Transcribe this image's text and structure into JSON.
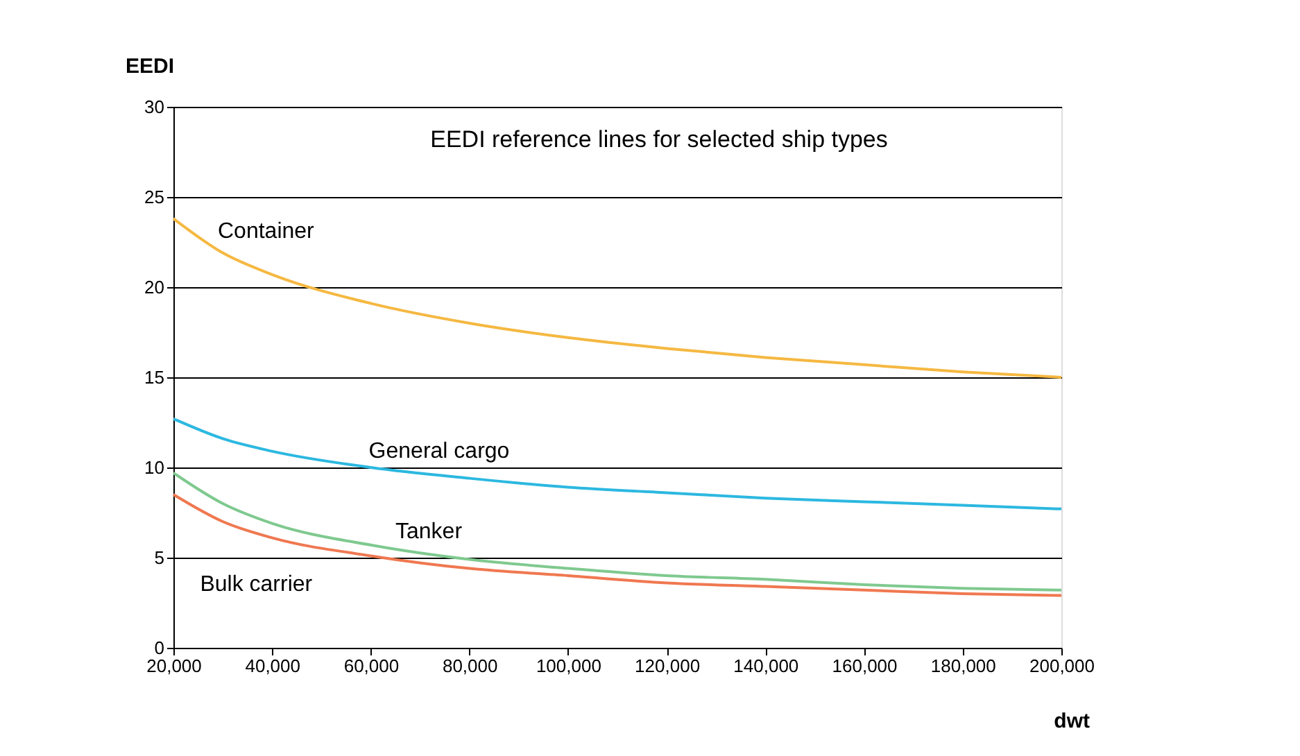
{
  "chart_data": {
    "type": "line",
    "title": "EEDI reference lines for selected ship types",
    "xlabel": "dwt",
    "ylabel": "EEDI",
    "x": [
      20000,
      30000,
      40000,
      60000,
      80000,
      100000,
      120000,
      140000,
      160000,
      180000,
      200000
    ],
    "series": [
      {
        "name": "Container",
        "color": "#f5b841",
        "values": [
          23.8,
          21.9,
          20.7,
          19.1,
          18.0,
          17.2,
          16.6,
          16.1,
          15.7,
          15.3,
          15.0
        ]
      },
      {
        "name": "General cargo",
        "color": "#2cb8e0",
        "values": [
          12.7,
          11.6,
          10.9,
          10.0,
          9.4,
          8.9,
          8.6,
          8.3,
          8.1,
          7.9,
          7.7
        ]
      },
      {
        "name": "Tanker",
        "color": "#7fc98f",
        "values": [
          9.7,
          8.0,
          6.9,
          5.7,
          4.9,
          4.4,
          4.0,
          3.8,
          3.5,
          3.3,
          3.2
        ]
      },
      {
        "name": "Bulk carrier",
        "color": "#f07850",
        "values": [
          8.5,
          7.0,
          6.1,
          5.1,
          4.4,
          4.0,
          3.6,
          3.4,
          3.2,
          3.0,
          2.9
        ]
      }
    ],
    "xlim": [
      20000,
      200000
    ],
    "xticks": [
      {
        "value": 20000,
        "label": "20,000"
      },
      {
        "value": 40000,
        "label": "40,000"
      },
      {
        "value": 60000,
        "label": "60,000"
      },
      {
        "value": 80000,
        "label": "80,000"
      },
      {
        "value": 100000,
        "label": "100,000"
      },
      {
        "value": 120000,
        "label": "120,000"
      },
      {
        "value": 140000,
        "label": "140,000"
      },
      {
        "value": 160000,
        "label": "160,000"
      },
      {
        "value": 180000,
        "label": "180,000"
      },
      {
        "value": 200000,
        "label": "200,000"
      }
    ],
    "ylim": [
      0,
      30
    ],
    "yticks": [
      0,
      5,
      10,
      15,
      20,
      25,
      30
    ],
    "grid": "y",
    "legend": false,
    "marker": "none",
    "line_style": "solid"
  }
}
